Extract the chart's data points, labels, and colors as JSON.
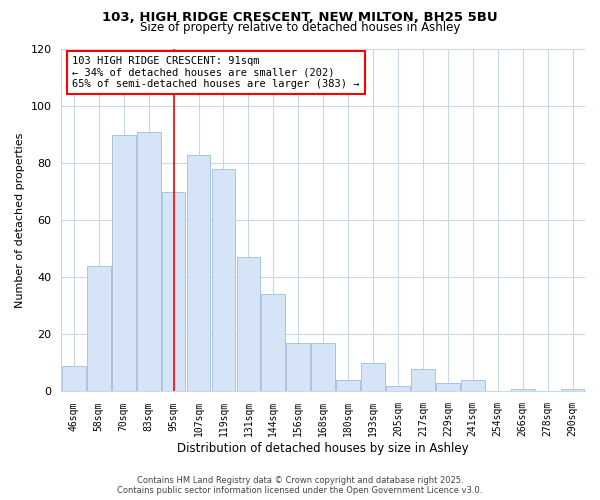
{
  "title1": "103, HIGH RIDGE CRESCENT, NEW MILTON, BH25 5BU",
  "title2": "Size of property relative to detached houses in Ashley",
  "xlabel": "Distribution of detached houses by size in Ashley",
  "ylabel": "Number of detached properties",
  "bin_labels": [
    "46sqm",
    "58sqm",
    "70sqm",
    "83sqm",
    "95sqm",
    "107sqm",
    "119sqm",
    "131sqm",
    "144sqm",
    "156sqm",
    "168sqm",
    "180sqm",
    "193sqm",
    "205sqm",
    "217sqm",
    "229sqm",
    "241sqm",
    "254sqm",
    "266sqm",
    "278sqm",
    "290sqm"
  ],
  "bar_values": [
    9,
    44,
    90,
    91,
    70,
    83,
    78,
    47,
    34,
    17,
    17,
    4,
    10,
    2,
    8,
    3,
    4,
    0,
    1,
    0,
    1
  ],
  "bar_color": "#d6e4f7",
  "bar_edge_color": "#a8c4e0",
  "vline_x_index": 4,
  "ylim": [
    0,
    120
  ],
  "yticks": [
    0,
    20,
    40,
    60,
    80,
    100,
    120
  ],
  "annotation_title": "103 HIGH RIDGE CRESCENT: 91sqm",
  "annotation_line1": "← 34% of detached houses are smaller (202)",
  "annotation_line2": "65% of semi-detached houses are larger (383) →",
  "footer1": "Contains HM Land Registry data © Crown copyright and database right 2025.",
  "footer2": "Contains public sector information licensed under the Open Government Licence v3.0.",
  "bg_color": "#ffffff",
  "grid_color": "#c8d8e8",
  "title1_fontsize": 9.5,
  "title2_fontsize": 8.5,
  "ylabel_fontsize": 8,
  "xlabel_fontsize": 8.5,
  "ytick_fontsize": 8,
  "xtick_fontsize": 7,
  "ann_fontsize": 7.5,
  "footer_fontsize": 6
}
